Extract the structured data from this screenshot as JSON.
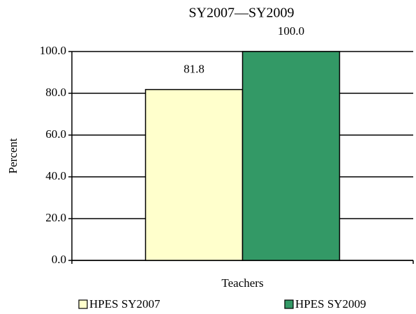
{
  "chart_data": {
    "type": "bar",
    "title": "SY2007—SY2009",
    "categories": [
      "Teachers"
    ],
    "series": [
      {
        "name": "HPES SY2007",
        "color": "#ffffcc",
        "values": [
          81.8
        ],
        "value_labels": [
          "81.8"
        ]
      },
      {
        "name": "HPES SY2009",
        "color": "#339966",
        "values": [
          100
        ],
        "value_labels": [
          "100.0"
        ]
      }
    ],
    "ylabel": "Percent",
    "ylim": [
      0,
      100
    ],
    "yticks": [
      {
        "value": 0,
        "label": "0.0"
      },
      {
        "value": 20,
        "label": "20.0"
      },
      {
        "value": 40,
        "label": "40.0"
      },
      {
        "value": 60,
        "label": "60.0"
      },
      {
        "value": 80,
        "label": "80.0"
      },
      {
        "value": 100,
        "label": "100.0"
      }
    ],
    "grid": true,
    "legend": "bottom"
  }
}
